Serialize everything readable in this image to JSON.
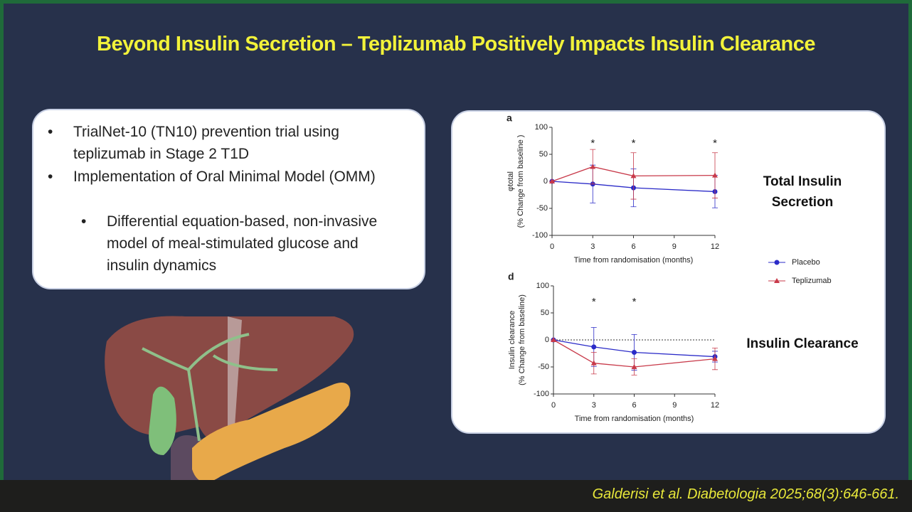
{
  "header": {
    "title": "Beyond Insulin Secretion – Teplizumab Positively Impacts Insulin Clearance"
  },
  "bullets": [
    {
      "text": "TrialNet-10 (TN10) prevention trial using teplizumab in Stage 2 T1D"
    },
    {
      "text": "Implementation of Oral Minimal Model (OMM)"
    },
    {
      "text": "Differential equation-based, non-invasive model of meal-stimulated glucose and insulin dynamics"
    }
  ],
  "chart_data": [
    {
      "type": "line",
      "panel": "a",
      "side_label": "Total Insulin Secretion",
      "xlabel": "Time from randomisation (months)",
      "ylabel": [
        "φtotal",
        "(% Change from baseline )"
      ],
      "xlim": [
        0,
        12
      ],
      "xticks": [
        0,
        3,
        6,
        9,
        12
      ],
      "ylim": [
        -100,
        100
      ],
      "yticks": [
        -100,
        -50,
        0,
        50,
        100
      ],
      "x": [
        0,
        3,
        6,
        12
      ],
      "series": [
        {
          "name": "Placebo",
          "color": "#2b2bc8",
          "marker": "circle",
          "values": [
            0,
            -5,
            -12,
            -19
          ],
          "errors": [
            0,
            35,
            35,
            30
          ]
        },
        {
          "name": "Teplizumab",
          "color": "#c83a4a",
          "marker": "triangle",
          "values": [
            0,
            27,
            10,
            11
          ],
          "errors": [
            0,
            32,
            43,
            42
          ]
        }
      ],
      "annotations": [
        {
          "x": 3,
          "text": "*"
        },
        {
          "x": 6,
          "text": "*"
        },
        {
          "x": 12,
          "text": "*"
        }
      ]
    },
    {
      "type": "line",
      "panel": "d",
      "side_label": "Insulin Clearance",
      "xlabel": "Time from randomisation (months)",
      "ylabel": [
        "Insulin clearance",
        "(% Change from baseline)"
      ],
      "xlim": [
        0,
        12
      ],
      "xticks": [
        0,
        3,
        6,
        9,
        12
      ],
      "ylim": [
        -100,
        100
      ],
      "yticks": [
        -100,
        -50,
        0,
        50,
        100
      ],
      "reference_line": 0,
      "x": [
        0,
        3,
        6,
        12
      ],
      "series": [
        {
          "color": "#2b2bc8",
          "values": [
            0,
            -13,
            -23,
            -31
          ],
          "errors": [
            0,
            36,
            33,
            10
          ]
        },
        {
          "color": "#c83a4a",
          "values": [
            0,
            -43,
            -50,
            -35
          ],
          "errors": [
            0,
            20,
            15,
            20
          ]
        }
      ],
      "annotations": [
        {
          "x": 3,
          "text": "*"
        },
        {
          "x": 6,
          "text": "*"
        }
      ]
    }
  ],
  "citation": "Galderisi et al. Diabetologia 2025;68(3):646-661."
}
